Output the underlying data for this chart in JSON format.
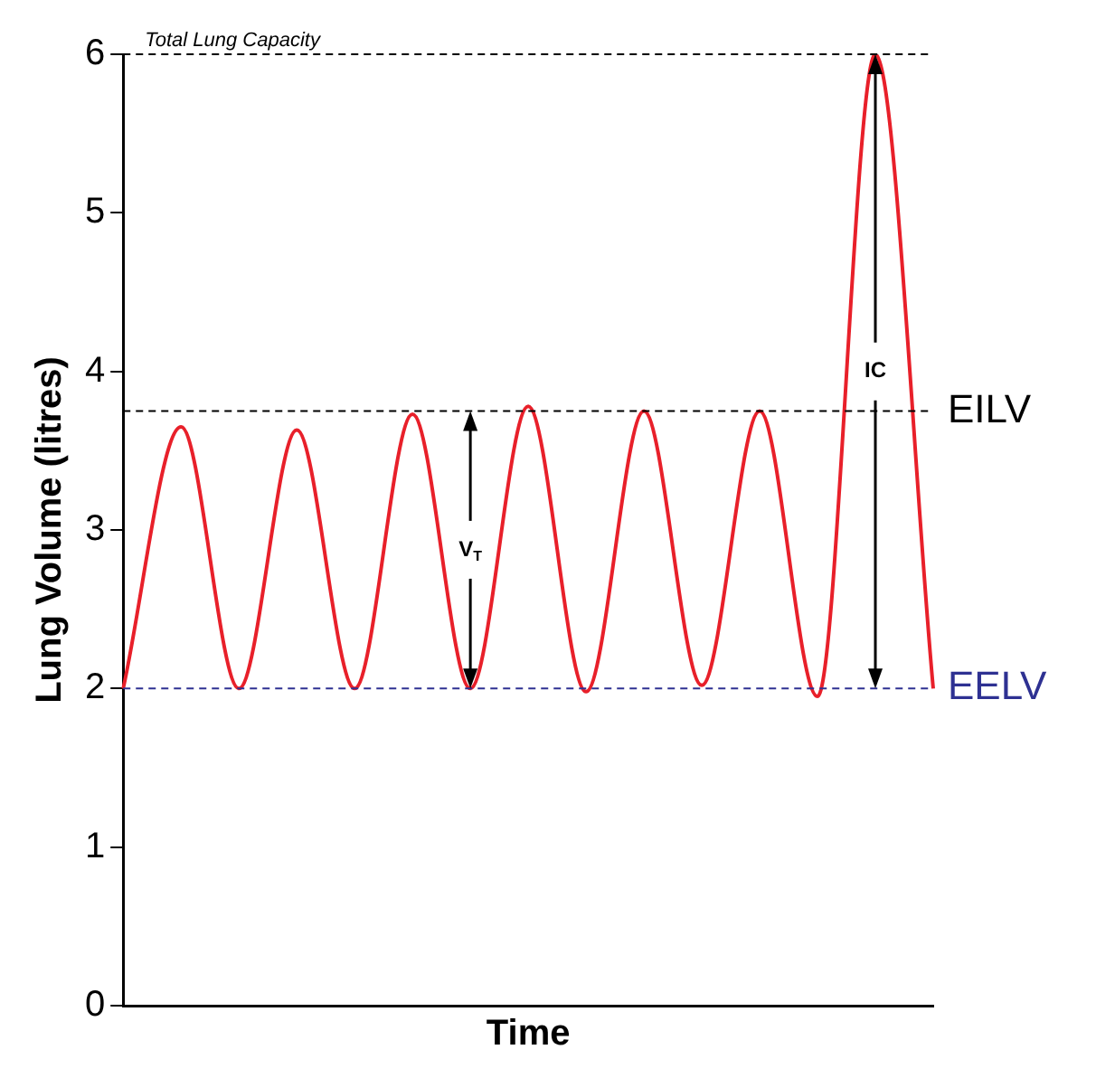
{
  "chart_data": {
    "type": "line",
    "xlabel": "Time",
    "ylabel": "Lung Volume (litres)",
    "categories": [
      null,
      null,
      null,
      null,
      null,
      null,
      null,
      null,
      null,
      null,
      null,
      null,
      null,
      null,
      null
    ],
    "series": [
      {
        "color": "#e8202a",
        "values": [
          2,
          3.65,
          2,
          3.63,
          2,
          3.73,
          2,
          3.78,
          1.98,
          3.75,
          2.02,
          3.75,
          1.95,
          6,
          2
        ]
      }
    ],
    "ylim": [
      0,
      6
    ],
    "yticks": [
      0,
      1,
      2,
      3,
      4,
      5,
      6
    ],
    "tick_labels": "y",
    "grid": false,
    "legend": false,
    "marker": "none",
    "line_style": "solid",
    "ref_lines": [
      {
        "axis": "y",
        "value": 6,
        "label": "Total Lung Capacity",
        "color": "#000000",
        "line_style": "dashed"
      },
      {
        "axis": "y",
        "value": 3.75,
        "label": "EILV",
        "color": "#000000",
        "line_style": "dashed"
      },
      {
        "axis": "y",
        "value": 2,
        "label": "EELV",
        "color": "#2e3192",
        "line_style": "dashed"
      }
    ],
    "annotations": [
      "V$_{T}$",
      "IC"
    ]
  }
}
